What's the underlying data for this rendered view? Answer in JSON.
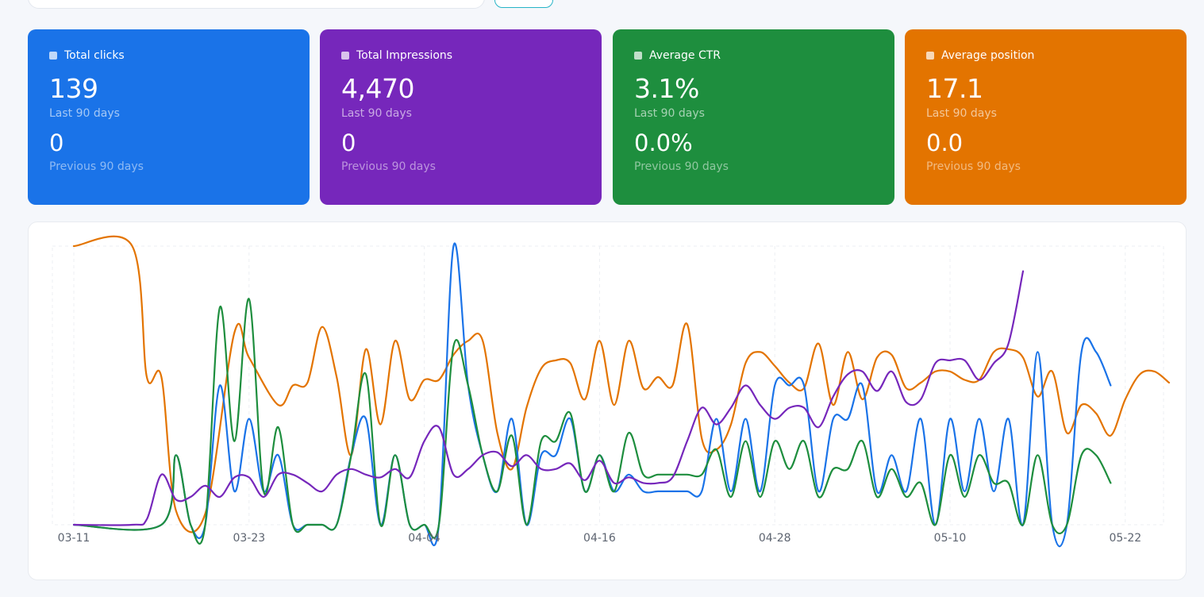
{
  "cards": [
    {
      "title": "Total clicks",
      "value": "139",
      "period": "Last 90 days",
      "prev_value": "0",
      "prev_period": "Previous 90 days",
      "color": "#1a73e8"
    },
    {
      "title": "Total Impressions",
      "value": "4,470",
      "period": "Last 90 days",
      "prev_value": "0",
      "prev_period": "Previous 90 days",
      "color": "#7627bb"
    },
    {
      "title": "Average CTR",
      "value": "3.1%",
      "period": "Last 90 days",
      "prev_value": "0.0%",
      "prev_period": "Previous 90 days",
      "color": "#1e8e3e"
    },
    {
      "title": "Average position",
      "value": "17.1",
      "period": "Last 90 days",
      "prev_value": "0.0",
      "prev_period": "Previous 90 days",
      "color": "#e37400"
    }
  ],
  "chart_data": {
    "type": "line",
    "x_ticks": [
      "03-11",
      "03-23",
      "04-04",
      "04-16",
      "04-28",
      "05-10",
      "05-22"
    ],
    "x_start": "03-11",
    "x_count": 75,
    "y_axis_labels": "none",
    "grid": true,
    "normalized": true,
    "series": [
      {
        "color": "#e37400",
        "values": [
          [
            0,
            1.0
          ],
          [
            4,
            1.0
          ],
          [
            5,
            0.53
          ],
          [
            6,
            0.53
          ],
          [
            7,
            0.05
          ],
          [
            9,
            0.04
          ],
          [
            11,
            0.69
          ],
          [
            12,
            0.6
          ],
          [
            14,
            0.43
          ],
          [
            15,
            0.5
          ],
          [
            16,
            0.51
          ],
          [
            17,
            0.71
          ],
          [
            18,
            0.53
          ],
          [
            19,
            0.25
          ],
          [
            20,
            0.63
          ],
          [
            21,
            0.36
          ],
          [
            22,
            0.66
          ],
          [
            23,
            0.45
          ],
          [
            24,
            0.52
          ],
          [
            25,
            0.52
          ],
          [
            26,
            0.61
          ],
          [
            27,
            0.66
          ],
          [
            28,
            0.66
          ],
          [
            29,
            0.33
          ],
          [
            30,
            0.2
          ],
          [
            31,
            0.42
          ],
          [
            32,
            0.56
          ],
          [
            33,
            0.59
          ],
          [
            34,
            0.58
          ],
          [
            35,
            0.45
          ],
          [
            36,
            0.66
          ],
          [
            37,
            0.43
          ],
          [
            38,
            0.66
          ],
          [
            39,
            0.49
          ],
          [
            40,
            0.53
          ],
          [
            41,
            0.5
          ],
          [
            42,
            0.72
          ],
          [
            43,
            0.31
          ],
          [
            44,
            0.27
          ],
          [
            45,
            0.36
          ],
          [
            46,
            0.58
          ],
          [
            47,
            0.62
          ],
          [
            48,
            0.57
          ],
          [
            49,
            0.51
          ],
          [
            50,
            0.49
          ],
          [
            51,
            0.65
          ],
          [
            52,
            0.43
          ],
          [
            53,
            0.62
          ],
          [
            54,
            0.45
          ],
          [
            55,
            0.6
          ],
          [
            56,
            0.61
          ],
          [
            57,
            0.49
          ],
          [
            58,
            0.51
          ],
          [
            59,
            0.55
          ],
          [
            60,
            0.55
          ],
          [
            61,
            0.52
          ],
          [
            62,
            0.52
          ],
          [
            63,
            0.62
          ],
          [
            64,
            0.63
          ],
          [
            65,
            0.6
          ],
          [
            66,
            0.46
          ],
          [
            67,
            0.55
          ],
          [
            68,
            0.33
          ],
          [
            69,
            0.43
          ],
          [
            70,
            0.4
          ],
          [
            71,
            0.32
          ],
          [
            72,
            0.45
          ],
          [
            73,
            0.54
          ],
          [
            74,
            0.55
          ],
          [
            75,
            0.51
          ]
        ]
      },
      {
        "color": "#1a73e8",
        "values": [
          [
            0,
            0
          ],
          [
            6,
            0
          ],
          [
            7,
            0.25
          ],
          [
            8,
            0
          ],
          [
            9,
            0
          ],
          [
            10,
            0.5
          ],
          [
            11,
            0.12
          ],
          [
            12,
            0.38
          ],
          [
            13,
            0.12
          ],
          [
            14,
            0.25
          ],
          [
            15,
            0
          ],
          [
            16,
            0
          ],
          [
            17,
            0
          ],
          [
            18,
            0
          ],
          [
            19,
            0.25
          ],
          [
            20,
            0.38
          ],
          [
            21,
            0
          ],
          [
            22,
            0.25
          ],
          [
            23,
            0
          ],
          [
            24,
            0
          ],
          [
            25,
            0
          ],
          [
            26,
            1.0
          ],
          [
            27,
            0.5
          ],
          [
            28,
            0.25
          ],
          [
            29,
            0.12
          ],
          [
            30,
            0.38
          ],
          [
            31,
            0
          ],
          [
            32,
            0.25
          ],
          [
            33,
            0.25
          ],
          [
            34,
            0.38
          ],
          [
            35,
            0.12
          ],
          [
            36,
            0.25
          ],
          [
            37,
            0.12
          ],
          [
            38,
            0.18
          ],
          [
            39,
            0.12
          ],
          [
            40,
            0.12
          ],
          [
            41,
            0.12
          ],
          [
            42,
            0.12
          ],
          [
            43,
            0.12
          ],
          [
            44,
            0.38
          ],
          [
            45,
            0.12
          ],
          [
            46,
            0.38
          ],
          [
            47,
            0.12
          ],
          [
            48,
            0.5
          ],
          [
            49,
            0.5
          ],
          [
            50,
            0.5
          ],
          [
            51,
            0.12
          ],
          [
            52,
            0.38
          ],
          [
            53,
            0.38
          ],
          [
            54,
            0.5
          ],
          [
            55,
            0.12
          ],
          [
            56,
            0.25
          ],
          [
            57,
            0.12
          ],
          [
            58,
            0.38
          ],
          [
            59,
            0
          ],
          [
            60,
            0.38
          ],
          [
            61,
            0.12
          ],
          [
            62,
            0.38
          ],
          [
            63,
            0.12
          ],
          [
            64,
            0.38
          ],
          [
            65,
            0
          ],
          [
            66,
            0.62
          ],
          [
            67,
            0
          ],
          [
            68,
            0
          ],
          [
            69,
            0.62
          ],
          [
            70,
            0.62
          ],
          [
            71,
            0.5
          ]
        ]
      },
      {
        "color": "#1e8e3e",
        "values": [
          [
            0,
            0
          ],
          [
            6,
            0
          ],
          [
            7,
            0.25
          ],
          [
            8,
            0
          ],
          [
            9,
            0
          ],
          [
            10,
            0.78
          ],
          [
            11,
            0.3
          ],
          [
            12,
            0.81
          ],
          [
            13,
            0.12
          ],
          [
            14,
            0.35
          ],
          [
            15,
            0
          ],
          [
            16,
            0
          ],
          [
            17,
            0
          ],
          [
            18,
            0
          ],
          [
            19,
            0.25
          ],
          [
            20,
            0.54
          ],
          [
            21,
            0
          ],
          [
            22,
            0.25
          ],
          [
            23,
            0
          ],
          [
            24,
            0
          ],
          [
            25,
            0
          ],
          [
            26,
            0.64
          ],
          [
            27,
            0.5
          ],
          [
            28,
            0.25
          ],
          [
            29,
            0.12
          ],
          [
            30,
            0.32
          ],
          [
            31,
            0
          ],
          [
            32,
            0.3
          ],
          [
            33,
            0.3
          ],
          [
            34,
            0.4
          ],
          [
            35,
            0.12
          ],
          [
            36,
            0.25
          ],
          [
            37,
            0.12
          ],
          [
            38,
            0.33
          ],
          [
            39,
            0.18
          ],
          [
            40,
            0.18
          ],
          [
            41,
            0.18
          ],
          [
            42,
            0.18
          ],
          [
            43,
            0.18
          ],
          [
            44,
            0.27
          ],
          [
            45,
            0.1
          ],
          [
            46,
            0.3
          ],
          [
            47,
            0.1
          ],
          [
            48,
            0.3
          ],
          [
            49,
            0.2
          ],
          [
            50,
            0.3
          ],
          [
            51,
            0.1
          ],
          [
            52,
            0.2
          ],
          [
            53,
            0.2
          ],
          [
            54,
            0.3
          ],
          [
            55,
            0.1
          ],
          [
            56,
            0.2
          ],
          [
            57,
            0.1
          ],
          [
            58,
            0.15
          ],
          [
            59,
            0
          ],
          [
            60,
            0.25
          ],
          [
            61,
            0.1
          ],
          [
            62,
            0.25
          ],
          [
            63,
            0.15
          ],
          [
            64,
            0.15
          ],
          [
            65,
            0
          ],
          [
            66,
            0.25
          ],
          [
            67,
            0
          ],
          [
            68,
            0
          ],
          [
            69,
            0.25
          ],
          [
            70,
            0.25
          ],
          [
            71,
            0.15
          ]
        ]
      },
      {
        "color": "#7627bb",
        "values": [
          [
            0,
            0
          ],
          [
            4,
            0
          ],
          [
            5,
            0.02
          ],
          [
            6,
            0.18
          ],
          [
            7,
            0.09
          ],
          [
            8,
            0.1
          ],
          [
            9,
            0.14
          ],
          [
            10,
            0.1
          ],
          [
            11,
            0.17
          ],
          [
            12,
            0.17
          ],
          [
            13,
            0.1
          ],
          [
            14,
            0.18
          ],
          [
            15,
            0.18
          ],
          [
            16,
            0.15
          ],
          [
            17,
            0.12
          ],
          [
            18,
            0.18
          ],
          [
            19,
            0.2
          ],
          [
            20,
            0.18
          ],
          [
            21,
            0.17
          ],
          [
            22,
            0.2
          ],
          [
            23,
            0.17
          ],
          [
            24,
            0.3
          ],
          [
            25,
            0.35
          ],
          [
            26,
            0.18
          ],
          [
            27,
            0.2
          ],
          [
            28,
            0.25
          ],
          [
            29,
            0.26
          ],
          [
            30,
            0.21
          ],
          [
            31,
            0.25
          ],
          [
            32,
            0.2
          ],
          [
            33,
            0.2
          ],
          [
            34,
            0.22
          ],
          [
            35,
            0.16
          ],
          [
            36,
            0.23
          ],
          [
            37,
            0.15
          ],
          [
            38,
            0.17
          ],
          [
            39,
            0.15
          ],
          [
            40,
            0.15
          ],
          [
            41,
            0.17
          ],
          [
            42,
            0.3
          ],
          [
            43,
            0.42
          ],
          [
            44,
            0.36
          ],
          [
            45,
            0.42
          ],
          [
            46,
            0.5
          ],
          [
            47,
            0.43
          ],
          [
            48,
            0.38
          ],
          [
            49,
            0.42
          ],
          [
            50,
            0.42
          ],
          [
            51,
            0.35
          ],
          [
            52,
            0.46
          ],
          [
            53,
            0.54
          ],
          [
            54,
            0.55
          ],
          [
            55,
            0.48
          ],
          [
            56,
            0.55
          ],
          [
            57,
            0.44
          ],
          [
            58,
            0.45
          ],
          [
            59,
            0.58
          ],
          [
            60,
            0.59
          ],
          [
            61,
            0.59
          ],
          [
            62,
            0.52
          ],
          [
            63,
            0.58
          ],
          [
            64,
            0.65
          ],
          [
            65,
            0.91
          ]
        ]
      }
    ]
  }
}
